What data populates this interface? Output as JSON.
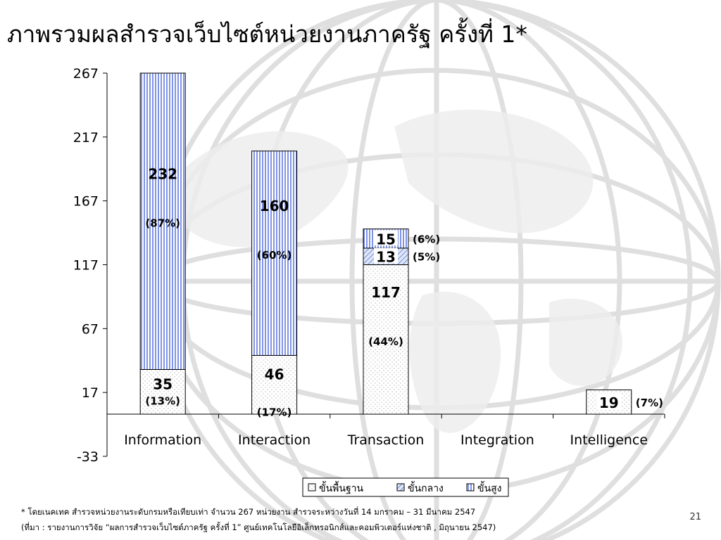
{
  "slide": {
    "title": "ภาพรวมผลสำรวจเว็บไซต์หน่วยงานภาครัฐ ครั้งที่ 1*",
    "footnote_1": "* โดยเนคเทค สำรวจหน่วยงานระดับกรมหรือเทียบเท่า จำนวน 267 หน่วยงาน สำรวจระหว่างวันที่ 14 มกราคม – 31 มีนาคม 2547",
    "footnote_2": "(ที่มา : รายงานการวิจัย “ผลการสำรวจเว็บไซต์ภาครัฐ ครั้งที่ 1”   ศูนย์เทคโนโลยีอิเล็กทรอนิกส์และคอมพิวเตอร์แห่งชาติ , มิถุนายน 2547)",
    "page_number": "21"
  },
  "chart_data": {
    "type": "bar",
    "stacked": true,
    "categories": [
      "Information",
      "Interaction",
      "Transaction",
      "Integration",
      "Intelligence"
    ],
    "series": [
      {
        "name": "ขั้นพื้นฐาน",
        "values": [
          35,
          46,
          117,
          0,
          19
        ],
        "pct_labels": [
          "(13%)",
          "(17%)",
          "(44%)",
          "",
          "(7%)"
        ],
        "pattern": "dots",
        "color": "#ffffff"
      },
      {
        "name": "ขั้นกลาง",
        "values": [
          0,
          0,
          13,
          0,
          0
        ],
        "pct_labels": [
          "",
          "",
          "(5%)",
          "",
          ""
        ],
        "pattern": "hatch",
        "color": "#4a6fd0"
      },
      {
        "name": "ขั้นสูง",
        "values": [
          232,
          160,
          15,
          0,
          0
        ],
        "pct_labels": [
          "(87%)",
          "(60%)",
          "(6%)",
          "",
          ""
        ],
        "pattern": "vlines",
        "color": "#3b5bd6"
      }
    ],
    "bar_value_labels": [
      {
        "category": "Information",
        "series": "ขั้นพื้นฐาน",
        "value": "35",
        "pct": "(13%)"
      },
      {
        "category": "Information",
        "series": "ขั้นสูง",
        "value": "232",
        "pct": "(87%)"
      },
      {
        "category": "Interaction",
        "series": "ขั้นพื้นฐาน",
        "value": "46",
        "pct": "(17%)"
      },
      {
        "category": "Interaction",
        "series": "ขั้นสูง",
        "value": "160",
        "pct": "(60%)"
      },
      {
        "category": "Transaction",
        "series": "ขั้นพื้นฐาน",
        "value": "117",
        "pct": "(44%)"
      },
      {
        "category": "Transaction",
        "series": "ขั้นกลาง",
        "value": "13",
        "pct": "(5%)"
      },
      {
        "category": "Transaction",
        "series": "ขั้นสูง",
        "value": "15",
        "pct": "(6%)"
      },
      {
        "category": "Intelligence",
        "series": "ขั้นพื้นฐาน",
        "value": "19",
        "pct": "(7%)"
      }
    ],
    "y_ticks": [
      "-33",
      "17",
      "67",
      "117",
      "167",
      "217",
      "267"
    ],
    "ylim": [
      -33,
      267
    ],
    "legend_position": "bottom-right",
    "grid": false
  }
}
